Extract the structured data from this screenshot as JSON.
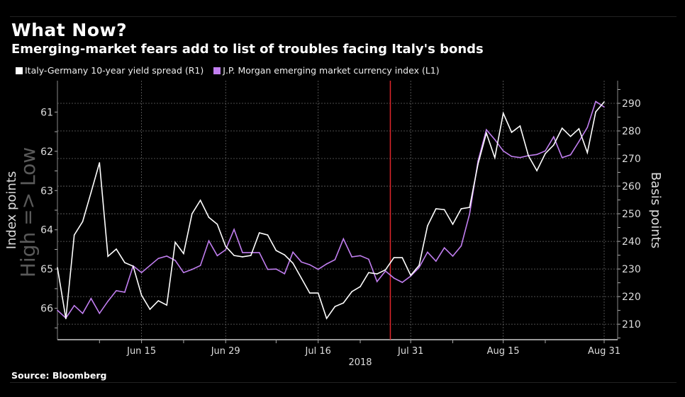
{
  "header": {
    "title": "What Now?",
    "subtitle": "Emerging-market fears add to list of troubles facing Italy's bonds"
  },
  "footer": {
    "source": "Source: Bloomberg"
  },
  "chart_data": {
    "type": "line",
    "title": "What Now?",
    "subtitle": "Emerging-market fears add to list of troubles facing Italy's bonds",
    "legend_position": "top-left",
    "grid": true,
    "background": "#000000",
    "x": [
      "2018-06-01",
      "2018-06-04",
      "2018-06-05",
      "2018-06-06",
      "2018-06-07",
      "2018-06-08",
      "2018-06-11",
      "2018-06-12",
      "2018-06-13",
      "2018-06-14",
      "2018-06-15",
      "2018-06-18",
      "2018-06-19",
      "2018-06-20",
      "2018-06-21",
      "2018-06-22",
      "2018-06-25",
      "2018-06-26",
      "2018-06-27",
      "2018-06-28",
      "2018-06-29",
      "2018-07-02",
      "2018-07-03",
      "2018-07-04",
      "2018-07-05",
      "2018-07-06",
      "2018-07-09",
      "2018-07-10",
      "2018-07-11",
      "2018-07-12",
      "2018-07-13",
      "2018-07-16",
      "2018-07-17",
      "2018-07-18",
      "2018-07-19",
      "2018-07-20",
      "2018-07-23",
      "2018-07-24",
      "2018-07-25",
      "2018-07-26",
      "2018-07-27",
      "2018-07-30",
      "2018-07-31",
      "2018-08-01",
      "2018-08-02",
      "2018-08-03",
      "2018-08-06",
      "2018-08-07",
      "2018-08-08",
      "2018-08-09",
      "2018-08-10",
      "2018-08-13",
      "2018-08-14",
      "2018-08-15",
      "2018-08-16",
      "2018-08-17",
      "2018-08-20",
      "2018-08-21",
      "2018-08-22",
      "2018-08-23",
      "2018-08-24",
      "2018-08-27",
      "2018-08-28",
      "2018-08-29",
      "2018-08-30",
      "2018-08-31"
    ],
    "x_ticks": [
      {
        "date": "2018-06-15",
        "label": "Jun 15"
      },
      {
        "date": "2018-06-29",
        "label": "Jun 29"
      },
      {
        "date": "2018-07-16",
        "label": "Jul 16"
      },
      {
        "date": "2018-07-31",
        "label": "Jul 31"
      },
      {
        "date": "2018-08-15",
        "label": "Aug 15"
      },
      {
        "date": "2018-08-31",
        "label": "Aug 31"
      }
    ],
    "x_year_label": "2018",
    "marker_line": {
      "date": "2018-07-27",
      "color": "#e0262b"
    },
    "left_axis": {
      "label": "Index points",
      "inverted": true,
      "range": [
        60.2,
        66.8
      ],
      "ticks": [
        61,
        62,
        63,
        64,
        65,
        66
      ],
      "watermark": "High => Low"
    },
    "right_axis": {
      "label": "Basis points",
      "range": [
        204.4,
        298.2
      ],
      "ticks": [
        210,
        220,
        230,
        240,
        250,
        260,
        270,
        280,
        290
      ]
    },
    "series": [
      {
        "name": "Italy-Germany 10-year yield spread (R1)",
        "axis": "right",
        "color": "#ffffff",
        "values": [
          230.5,
          212.0,
          242.3,
          247.2,
          257.7,
          268.5,
          234.6,
          237.2,
          232.3,
          231.0,
          220.5,
          215.4,
          218.5,
          216.9,
          239.7,
          235.6,
          250.0,
          254.9,
          248.7,
          246.2,
          238.2,
          234.9,
          234.4,
          234.9,
          243.1,
          242.3,
          236.7,
          235.1,
          232.1,
          226.7,
          221.3,
          221.3,
          212.1,
          216.4,
          217.7,
          221.8,
          223.6,
          228.7,
          228.2,
          229.7,
          234.1,
          234.1,
          227.7,
          231.3,
          245.6,
          251.8,
          251.5,
          246.2,
          251.8,
          252.3,
          268.0,
          279.2,
          270.3,
          286.4,
          279.5,
          281.8,
          271.0,
          265.6,
          271.8,
          274.9,
          281.0,
          278.0,
          280.8,
          272.1,
          286.9,
          290.5
        ]
      },
      {
        "name": "J.P. Morgan emerging market currency index (L1)",
        "axis": "left",
        "color": "#c17ef0",
        "values": [
          66.05,
          66.25,
          65.93,
          66.13,
          65.75,
          66.13,
          65.82,
          65.55,
          65.59,
          64.92,
          65.09,
          64.91,
          64.73,
          64.67,
          64.78,
          65.09,
          65.01,
          64.91,
          64.28,
          64.66,
          64.51,
          63.99,
          64.58,
          64.58,
          64.58,
          65.01,
          65.0,
          65.12,
          64.57,
          64.82,
          64.89,
          65.01,
          64.87,
          64.76,
          64.23,
          64.69,
          64.66,
          64.75,
          65.32,
          65.05,
          65.23,
          65.34,
          65.18,
          64.96,
          64.57,
          64.8,
          64.46,
          64.67,
          64.41,
          63.6,
          62.25,
          61.45,
          61.7,
          61.99,
          62.13,
          62.16,
          62.11,
          62.08,
          61.99,
          61.63,
          62.16,
          62.09,
          61.75,
          61.39,
          60.73,
          60.87
        ]
      }
    ]
  }
}
